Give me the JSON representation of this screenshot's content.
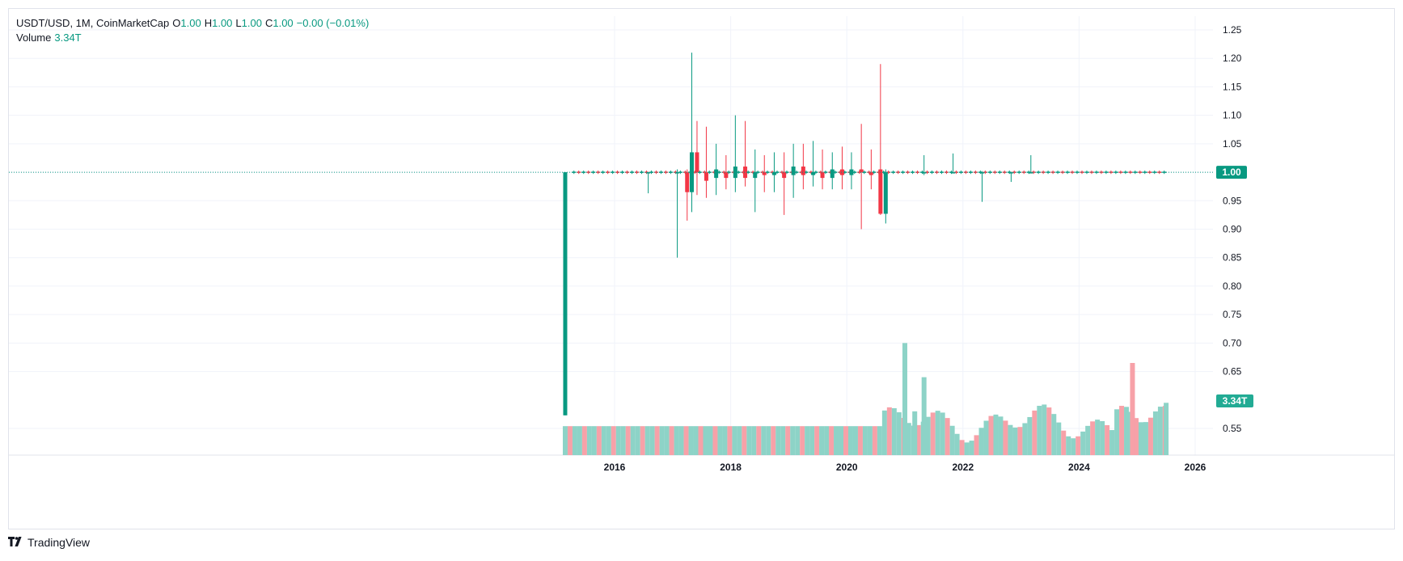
{
  "header": {
    "symbol_line": "USDT/USD, 1M, CoinMarketCap",
    "o_label": "O",
    "o_value": "1.00",
    "h_label": "H",
    "h_value": "1.00",
    "l_label": "L",
    "l_value": "1.00",
    "c_label": "C",
    "c_value": "1.00",
    "change": "−0.00 (−0.01%)",
    "volume_label": "Volume",
    "volume_value": "3.34T"
  },
  "footer": {
    "brand": "TradingView"
  },
  "colors": {
    "up": "#089981",
    "down": "#f23645",
    "vol_up": "#8dd3c7",
    "vol_down": "#f7a1a8",
    "grid": "#f0f3fa",
    "text": "#131722"
  },
  "chart_data": {
    "type": "candlestick",
    "title": "USDT/USD, 1M, CoinMarketCap",
    "y_ticks": [
      "1.25",
      "1.20",
      "1.15",
      "1.10",
      "1.05",
      "1.00",
      "0.95",
      "0.90",
      "0.85",
      "0.80",
      "0.75",
      "0.70",
      "0.65",
      "0.55"
    ],
    "y_tick_values": [
      1.25,
      1.2,
      1.15,
      1.1,
      1.05,
      1.0,
      0.95,
      0.9,
      0.85,
      0.8,
      0.75,
      0.7,
      0.65,
      0.55
    ],
    "ylim": [
      0.545,
      1.275
    ],
    "x_ticks": [
      "2016",
      "2018",
      "2020",
      "2022",
      "2024",
      "2026"
    ],
    "x_tick_values": [
      2016,
      2018,
      2020,
      2022,
      2024,
      2026
    ],
    "xlim": [
      2005.3,
      2028.3
    ],
    "last_price": "1.00",
    "last_price_value": 1.0,
    "volume_badge": "3.34T",
    "candles": [
      {
        "t": 2015.15,
        "o": 0.573,
        "h": 1.0,
        "l": 0.573,
        "c": 1.0
      },
      {
        "t": 2016.58,
        "o": 1.0,
        "h": 1.0,
        "l": 0.963,
        "c": 1.0
      },
      {
        "t": 2017.08,
        "o": 1.0,
        "h": 1.005,
        "l": 0.85,
        "c": 1.0
      },
      {
        "t": 2017.25,
        "o": 1.0,
        "h": 1.005,
        "l": 0.915,
        "c": 0.965
      },
      {
        "t": 2017.33,
        "o": 0.965,
        "h": 1.21,
        "l": 0.93,
        "c": 1.035
      },
      {
        "t": 2017.42,
        "o": 1.035,
        "h": 1.09,
        "l": 0.96,
        "c": 1.0
      },
      {
        "t": 2017.58,
        "o": 1.0,
        "h": 1.08,
        "l": 0.955,
        "c": 0.985
      },
      {
        "t": 2017.75,
        "o": 0.99,
        "h": 1.05,
        "l": 0.96,
        "c": 1.005
      },
      {
        "t": 2017.92,
        "o": 1.0,
        "h": 1.03,
        "l": 0.97,
        "c": 0.99
      },
      {
        "t": 2018.08,
        "o": 0.99,
        "h": 1.1,
        "l": 0.965,
        "c": 1.01
      },
      {
        "t": 2018.25,
        "o": 1.01,
        "h": 1.09,
        "l": 0.975,
        "c": 0.99
      },
      {
        "t": 2018.42,
        "o": 0.99,
        "h": 1.04,
        "l": 0.93,
        "c": 1.0
      },
      {
        "t": 2018.58,
        "o": 1.0,
        "h": 1.03,
        "l": 0.965,
        "c": 0.995
      },
      {
        "t": 2018.75,
        "o": 0.995,
        "h": 1.035,
        "l": 0.965,
        "c": 1.0
      },
      {
        "t": 2018.92,
        "o": 1.0,
        "h": 1.035,
        "l": 0.925,
        "c": 0.99
      },
      {
        "t": 2019.08,
        "o": 0.995,
        "h": 1.05,
        "l": 0.955,
        "c": 1.01
      },
      {
        "t": 2019.25,
        "o": 1.01,
        "h": 1.05,
        "l": 0.97,
        "c": 0.995
      },
      {
        "t": 2019.42,
        "o": 0.995,
        "h": 1.055,
        "l": 0.975,
        "c": 1.0
      },
      {
        "t": 2019.58,
        "o": 1.0,
        "h": 1.04,
        "l": 0.97,
        "c": 0.99
      },
      {
        "t": 2019.75,
        "o": 0.99,
        "h": 1.035,
        "l": 0.97,
        "c": 1.005
      },
      {
        "t": 2019.92,
        "o": 1.005,
        "h": 1.045,
        "l": 0.97,
        "c": 0.995
      },
      {
        "t": 2020.08,
        "o": 0.995,
        "h": 1.035,
        "l": 0.97,
        "c": 1.005
      },
      {
        "t": 2020.25,
        "o": 1.005,
        "h": 1.085,
        "l": 0.9,
        "c": 1.0
      },
      {
        "t": 2020.42,
        "o": 1.0,
        "h": 1.04,
        "l": 0.97,
        "c": 0.995
      },
      {
        "t": 2020.58,
        "o": 1.005,
        "h": 1.19,
        "l": 0.925,
        "c": 0.927
      },
      {
        "t": 2020.67,
        "o": 0.927,
        "h": 1.005,
        "l": 0.91,
        "c": 1.0
      },
      {
        "t": 2021.33,
        "o": 1.0,
        "h": 1.03,
        "l": 0.995,
        "c": 1.0
      },
      {
        "t": 2021.83,
        "o": 1.0,
        "h": 1.033,
        "l": 0.998,
        "c": 1.0
      },
      {
        "t": 2022.33,
        "o": 1.0,
        "h": 1.002,
        "l": 0.948,
        "c": 1.0
      },
      {
        "t": 2022.83,
        "o": 1.0,
        "h": 1.0,
        "l": 0.983,
        "c": 1.0
      },
      {
        "t": 2023.17,
        "o": 1.0,
        "h": 1.03,
        "l": 0.998,
        "c": 1.0
      }
    ],
    "volume": [
      {
        "t": 2021.0,
        "v": 0.7,
        "up": true
      },
      {
        "t": 2021.17,
        "v": 0.58,
        "up": true
      },
      {
        "t": 2021.33,
        "v": 0.64,
        "up": true
      },
      {
        "t": 2024.92,
        "v": 0.665,
        "up": false
      },
      {
        "t": 2025.5,
        "v": 0.595,
        "up": true
      }
    ]
  }
}
